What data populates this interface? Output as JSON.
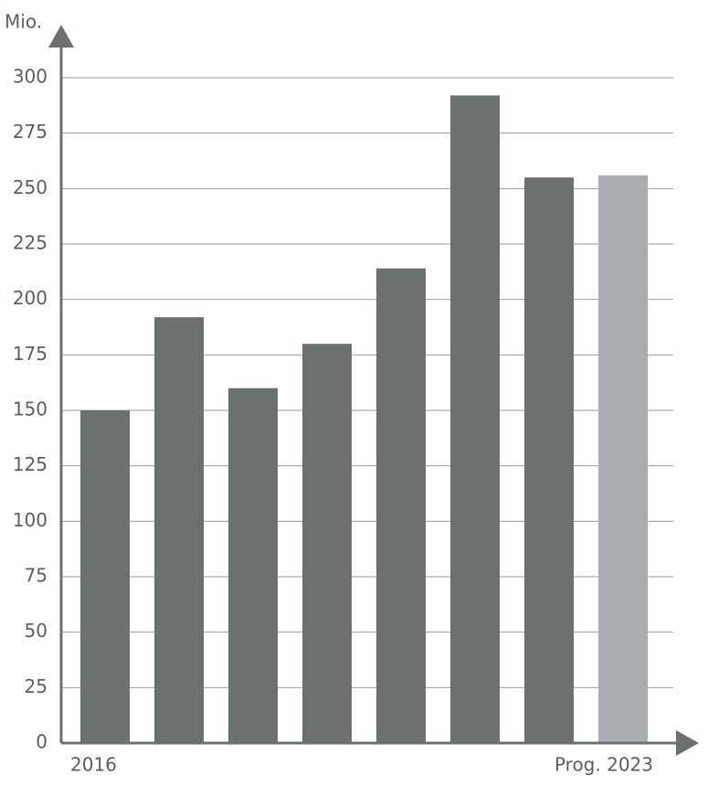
{
  "chart_data": {
    "type": "bar",
    "y_label": "Mio.",
    "categories": [
      "2016",
      null,
      null,
      null,
      null,
      null,
      null,
      "Prog. 2023"
    ],
    "values": [
      150,
      192,
      160,
      180,
      214,
      292,
      255,
      256
    ],
    "colors": [
      "#6b7170",
      "#6b7170",
      "#6b7170",
      "#6b7170",
      "#6b7170",
      "#6b7170",
      "#6b7170",
      "#a9adb0"
    ],
    "ylim": [
      0,
      300
    ],
    "yticks": [
      0,
      25,
      50,
      75,
      100,
      125,
      150,
      175,
      200,
      225,
      250,
      275,
      300
    ],
    "grid": true
  }
}
